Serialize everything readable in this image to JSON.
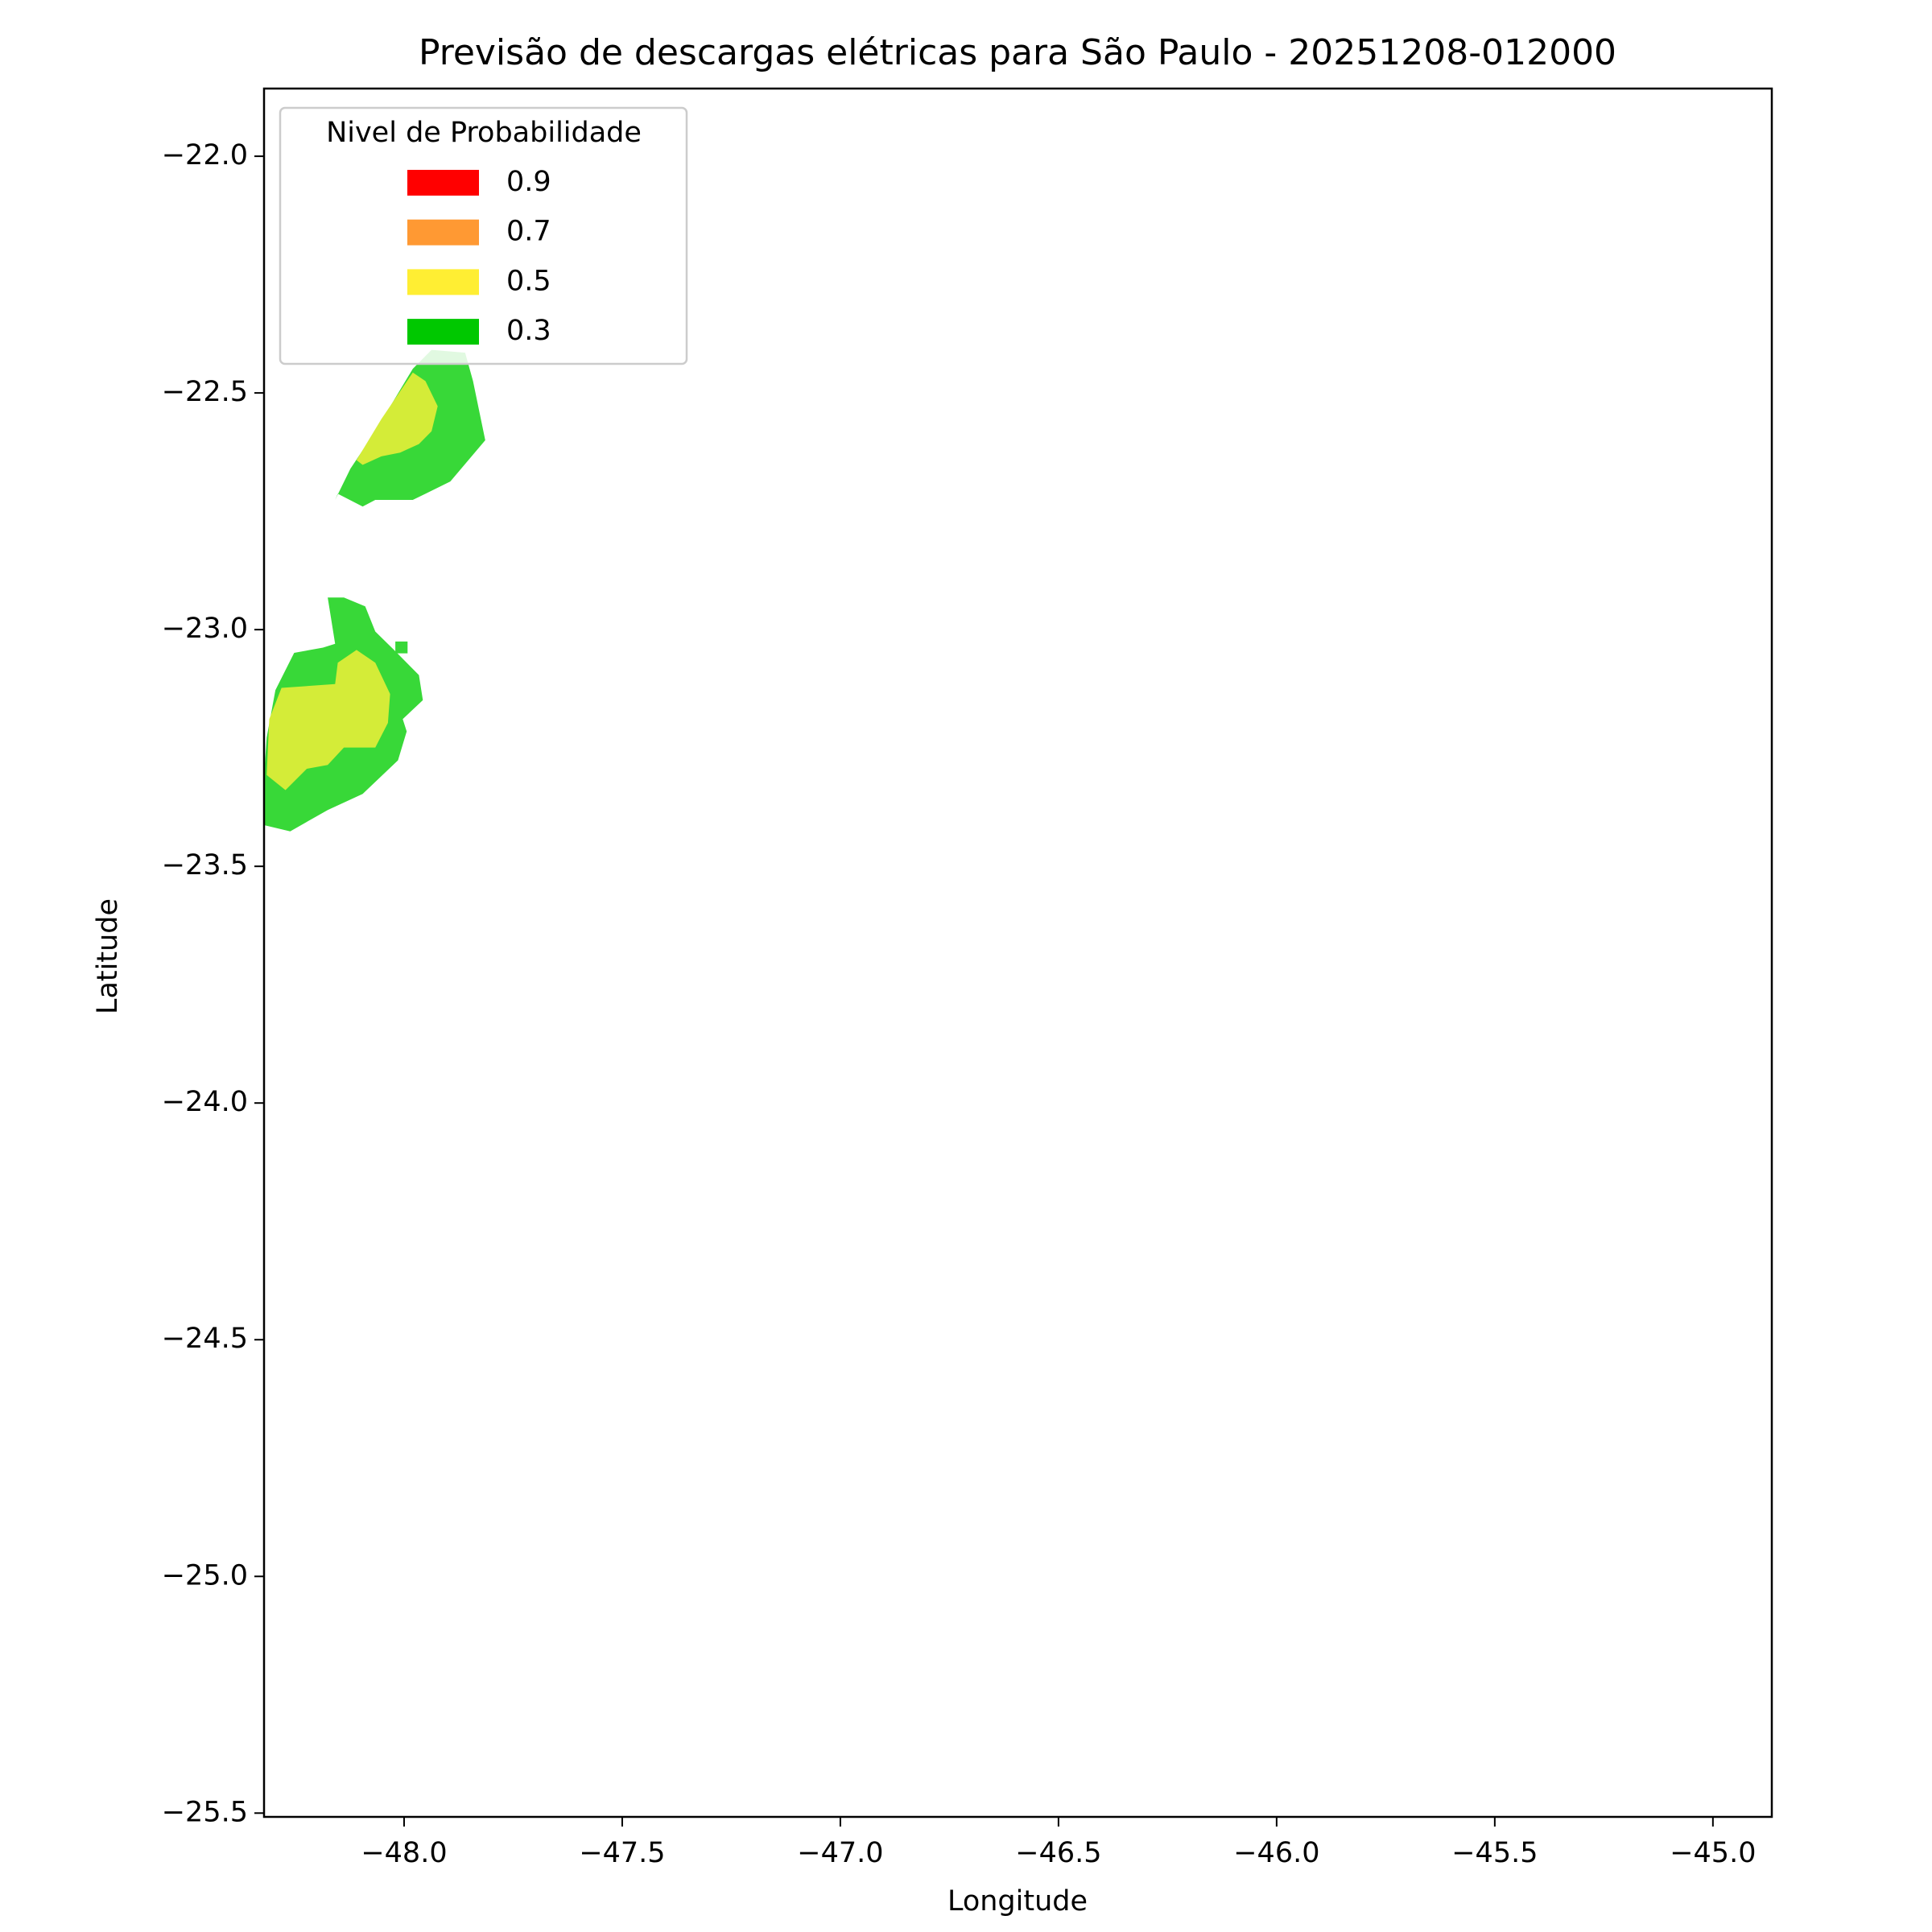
{
  "chart_data": {
    "type": "contour",
    "title": "Previsão de descargas elétricas para São Paulo - 20251208-012000",
    "xlabel": "Longitude",
    "ylabel": "Latitude",
    "xlim": [
      -48.321,
      -44.865
    ],
    "ylim": [
      -25.508,
      -21.857
    ],
    "xticks": [
      {
        "value": -48.0,
        "label": "−48.0"
      },
      {
        "value": -47.5,
        "label": "−47.5"
      },
      {
        "value": -47.0,
        "label": "−47.0"
      },
      {
        "value": -46.5,
        "label": "−46.5"
      },
      {
        "value": -46.0,
        "label": "−46.0"
      },
      {
        "value": -45.5,
        "label": "−45.5"
      },
      {
        "value": -45.0,
        "label": "−45.0"
      }
    ],
    "yticks": [
      {
        "value": -22.0,
        "label": "−22.0"
      },
      {
        "value": -22.5,
        "label": "−22.5"
      },
      {
        "value": -23.0,
        "label": "−23.0"
      },
      {
        "value": -23.5,
        "label": "−23.5"
      },
      {
        "value": -24.0,
        "label": "−24.0"
      },
      {
        "value": -24.5,
        "label": "−24.5"
      },
      {
        "value": -25.0,
        "label": "−25.0"
      },
      {
        "value": -25.5,
        "label": "−25.5"
      }
    ],
    "legend": {
      "title": "Nivel de Probabilidade",
      "position": "upper left",
      "entries": [
        {
          "label": 0.9,
          "color": "#ff0000"
        },
        {
          "label": 0.7,
          "color": "#ff9933"
        },
        {
          "label": 0.5,
          "color": "#ffee33"
        },
        {
          "label": 0.3,
          "color": "#00c800"
        }
      ]
    },
    "regions": [
      {
        "level": 0.3,
        "color": "#38d838",
        "points": [
          [
            -48.158,
            -22.726
          ],
          [
            -48.123,
            -22.66
          ],
          [
            -48.066,
            -22.581
          ],
          [
            -47.98,
            -22.449
          ],
          [
            -47.937,
            -22.409
          ],
          [
            -47.86,
            -22.415
          ],
          [
            -47.842,
            -22.475
          ],
          [
            -47.814,
            -22.6
          ],
          [
            -47.894,
            -22.687
          ],
          [
            -47.951,
            -22.713
          ],
          [
            -47.98,
            -22.726
          ],
          [
            -48.066,
            -22.726
          ],
          [
            -48.095,
            -22.74
          ],
          [
            -48.152,
            -22.713
          ]
        ]
      },
      {
        "level": 0.5,
        "color": "#d4ec38",
        "points": [
          [
            -48.109,
            -22.642
          ],
          [
            -48.052,
            -22.555
          ],
          [
            -47.98,
            -22.457
          ],
          [
            -47.951,
            -22.475
          ],
          [
            -47.923,
            -22.528
          ],
          [
            -47.937,
            -22.581
          ],
          [
            -47.966,
            -22.608
          ],
          [
            -48.009,
            -22.626
          ],
          [
            -48.052,
            -22.634
          ],
          [
            -48.095,
            -22.652
          ]
        ]
      },
      {
        "level": 0.3,
        "color": "#38d838",
        "points": [
          [
            -48.321,
            -23.413
          ],
          [
            -48.261,
            -23.426
          ],
          [
            -48.175,
            -23.381
          ],
          [
            -48.095,
            -23.347
          ],
          [
            -48.014,
            -23.276
          ],
          [
            -47.994,
            -23.215
          ],
          [
            -48.003,
            -23.189
          ],
          [
            -47.957,
            -23.149
          ],
          [
            -47.966,
            -23.096
          ],
          [
            -48.023,
            -23.043
          ],
          [
            -48.066,
            -23.004
          ],
          [
            -48.089,
            -22.951
          ],
          [
            -48.138,
            -22.932
          ],
          [
            -48.175,
            -22.932
          ],
          [
            -48.158,
            -23.03
          ],
          [
            -48.186,
            -23.038
          ],
          [
            -48.252,
            -23.049
          ],
          [
            -48.295,
            -23.128
          ],
          [
            -48.315,
            -23.228
          ],
          [
            -48.321,
            -23.307
          ]
        ]
      },
      {
        "level": 0.5,
        "color": "#d4ec38",
        "points": [
          [
            -48.315,
            -23.307
          ],
          [
            -48.272,
            -23.339
          ],
          [
            -48.223,
            -23.294
          ],
          [
            -48.175,
            -23.286
          ],
          [
            -48.138,
            -23.249
          ],
          [
            -48.066,
            -23.249
          ],
          [
            -48.037,
            -23.197
          ],
          [
            -48.032,
            -23.136
          ],
          [
            -48.066,
            -23.07
          ],
          [
            -48.109,
            -23.043
          ],
          [
            -48.152,
            -23.07
          ],
          [
            -48.158,
            -23.115
          ],
          [
            -48.281,
            -23.123
          ],
          [
            -48.309,
            -23.189
          ]
        ]
      },
      {
        "level": 0.3,
        "color": "#38d838",
        "points": [
          [
            -48.02,
            -23.025
          ],
          [
            -47.992,
            -23.025
          ],
          [
            -47.992,
            -23.05
          ],
          [
            -48.02,
            -23.05
          ]
        ]
      }
    ]
  }
}
